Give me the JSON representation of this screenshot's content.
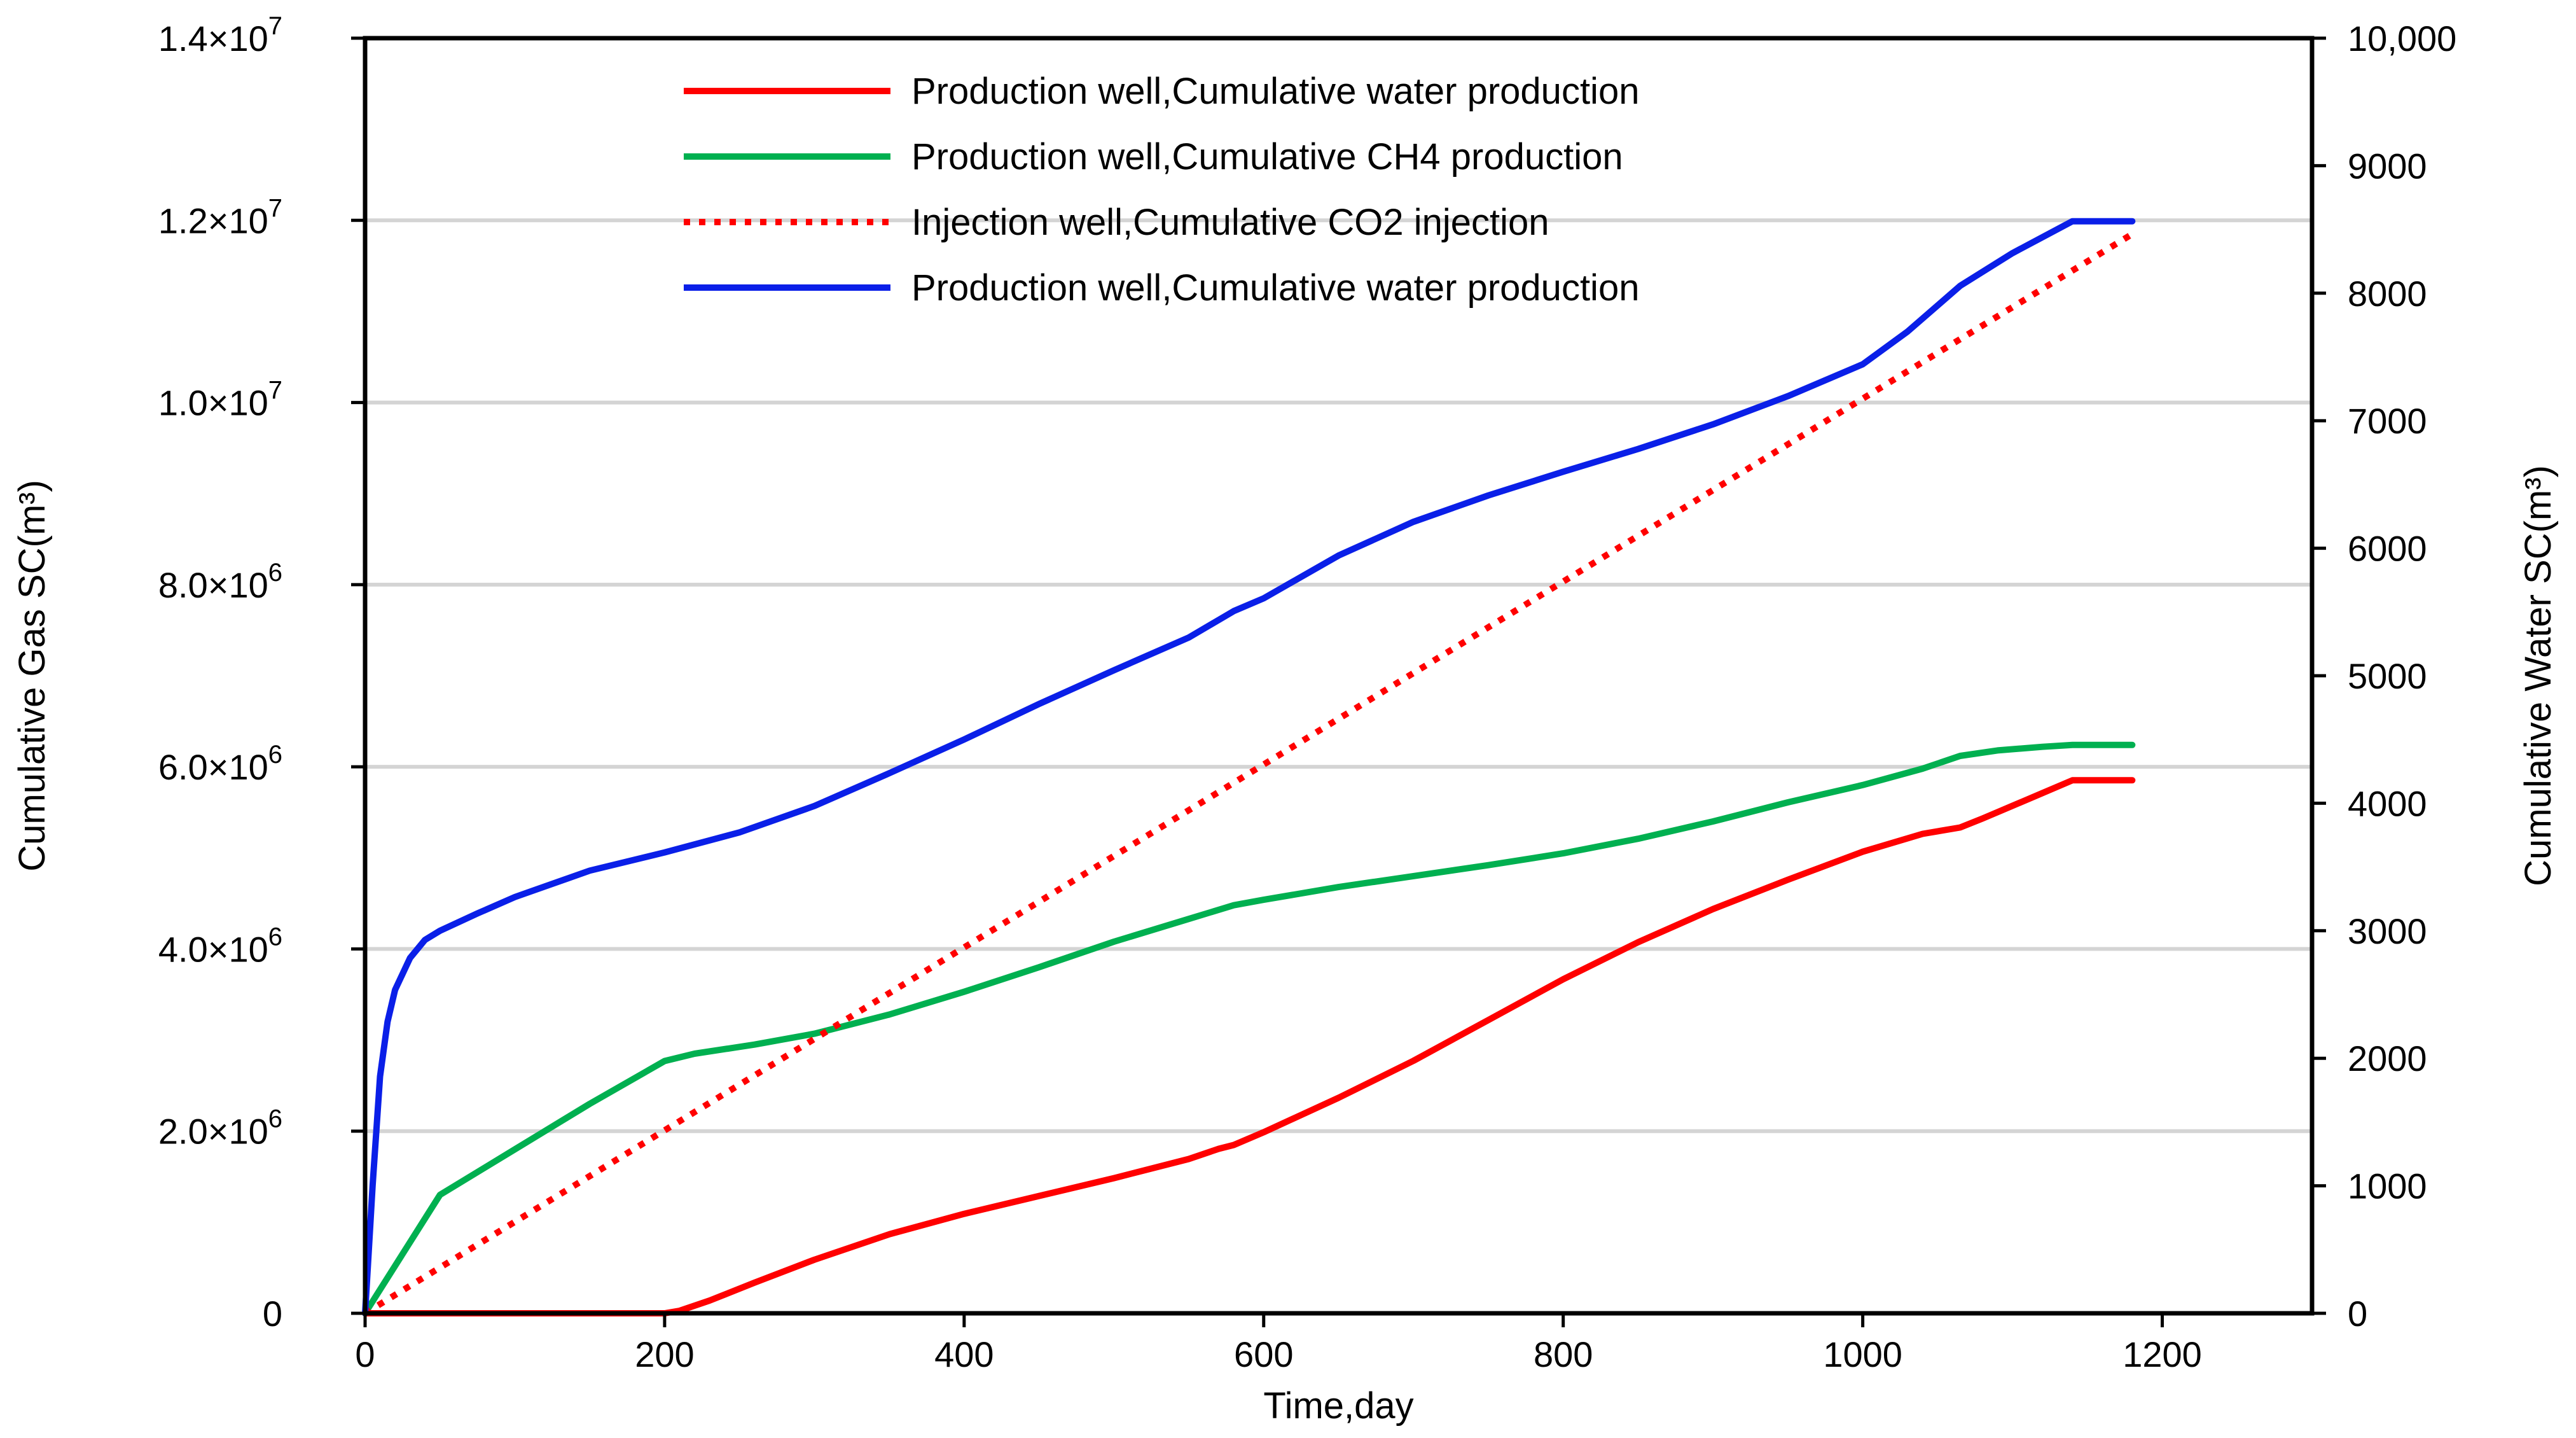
{
  "chart_data": {
    "type": "line",
    "title": "",
    "xlabel": "Time,day",
    "ylabel_left": "Cumulative Gas SC(m³)",
    "ylabel_right": "Cumulative Water SC(m³)",
    "xlim": [
      0,
      1300
    ],
    "ylim_left": [
      0,
      14000000
    ],
    "ylim_right": [
      0,
      10000
    ],
    "grid": "horizontal",
    "x_ticks": [
      {
        "value": 0,
        "label": "0"
      },
      {
        "value": 200,
        "label": "200"
      },
      {
        "value": 400,
        "label": "400"
      },
      {
        "value": 600,
        "label": "600"
      },
      {
        "value": 800,
        "label": "800"
      },
      {
        "value": 1000,
        "label": "1000"
      },
      {
        "value": 1200,
        "label": "1200"
      }
    ],
    "y_left_ticks": [
      {
        "value": 0,
        "mant": "0",
        "exp": ""
      },
      {
        "value": 2000000,
        "mant": "2.0×10",
        "exp": "6"
      },
      {
        "value": 4000000,
        "mant": "4.0×10",
        "exp": "6"
      },
      {
        "value": 6000000,
        "mant": "6.0×10",
        "exp": "6"
      },
      {
        "value": 8000000,
        "mant": "8.0×10",
        "exp": "6"
      },
      {
        "value": 10000000,
        "mant": "1.0×10",
        "exp": "7"
      },
      {
        "value": 12000000,
        "mant": "1.2×10",
        "exp": "7"
      },
      {
        "value": 14000000,
        "mant": "1.4×10",
        "exp": "7"
      }
    ],
    "y_right_ticks": [
      {
        "value": 0,
        "label": "0"
      },
      {
        "value": 1000,
        "label": "1000"
      },
      {
        "value": 2000,
        "label": "2000"
      },
      {
        "value": 3000,
        "label": "3000"
      },
      {
        "value": 4000,
        "label": "4000"
      },
      {
        "value": 5000,
        "label": "5000"
      },
      {
        "value": 6000,
        "label": "6000"
      },
      {
        "value": 7000,
        "label": "7000"
      },
      {
        "value": 8000,
        "label": "8000"
      },
      {
        "value": 9000,
        "label": "9000"
      },
      {
        "value": 10000,
        "label": "10,000"
      }
    ],
    "legend_position": "top-center",
    "series": [
      {
        "name": "Production well,Cumulative water production",
        "color": "#ff0000",
        "style": "solid",
        "axis": "right",
        "x": [
          0,
          50,
          100,
          150,
          195,
          200,
          210,
          230,
          260,
          300,
          350,
          400,
          450,
          500,
          550,
          570,
          580,
          600,
          650,
          700,
          750,
          800,
          850,
          900,
          950,
          1000,
          1040,
          1065,
          1080,
          1100,
          1120,
          1140,
          1160,
          1180
        ],
        "values": [
          0,
          0,
          0,
          0,
          0,
          0,
          20,
          100,
          240,
          420,
          620,
          780,
          920,
          1060,
          1210,
          1290,
          1320,
          1420,
          1690,
          1980,
          2300,
          2620,
          2910,
          3170,
          3400,
          3620,
          3760,
          3810,
          3880,
          3980,
          4080,
          4180,
          4180,
          4180
        ]
      },
      {
        "name": "Production well,Cumulative CH4 production",
        "color": "#00b050",
        "style": "solid",
        "axis": "left",
        "x": [
          0,
          50,
          100,
          150,
          200,
          220,
          260,
          300,
          350,
          400,
          450,
          500,
          550,
          580,
          600,
          650,
          700,
          750,
          800,
          850,
          900,
          950,
          1000,
          1040,
          1065,
          1090,
          1120,
          1140,
          1160,
          1180
        ],
        "values": [
          0,
          1300000,
          1800000,
          2300000,
          2770000,
          2850000,
          2950000,
          3070000,
          3280000,
          3530000,
          3800000,
          4080000,
          4330000,
          4480000,
          4540000,
          4680000,
          4800000,
          4920000,
          5050000,
          5210000,
          5400000,
          5610000,
          5800000,
          5980000,
          6120000,
          6180000,
          6220000,
          6240000,
          6240000,
          6240000
        ]
      },
      {
        "name": "Injection well,Cumulative CO2 injection",
        "color": "#ff0000",
        "style": "dotted",
        "axis": "left",
        "x": [
          0,
          1180
        ],
        "values": [
          0,
          11850000
        ]
      },
      {
        "name": "Production well,Cumulative water production",
        "color": "#0a1fe8",
        "style": "solid",
        "axis": "left",
        "x": [
          0,
          5,
          10,
          15,
          20,
          30,
          40,
          50,
          75,
          100,
          150,
          200,
          250,
          300,
          350,
          400,
          450,
          500,
          550,
          580,
          600,
          650,
          700,
          750,
          800,
          850,
          900,
          950,
          1000,
          1030,
          1065,
          1100,
          1140,
          1160,
          1180
        ],
        "values": [
          0,
          1400000,
          2600000,
          3200000,
          3550000,
          3900000,
          4100000,
          4200000,
          4390000,
          4570000,
          4860000,
          5060000,
          5280000,
          5570000,
          5930000,
          6300000,
          6690000,
          7060000,
          7420000,
          7710000,
          7850000,
          8320000,
          8690000,
          8980000,
          9240000,
          9490000,
          9760000,
          10070000,
          10420000,
          10780000,
          11280000,
          11640000,
          11990000,
          11990000,
          11990000
        ]
      }
    ]
  }
}
